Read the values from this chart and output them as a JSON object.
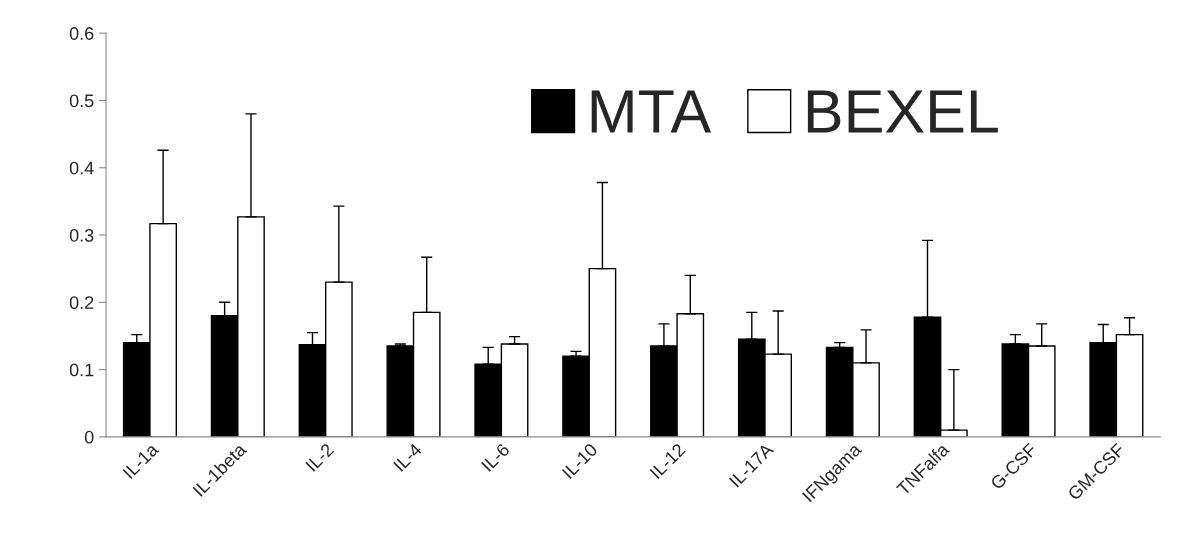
{
  "chart_data": {
    "type": "bar",
    "categories": [
      "IL-1a",
      "IL-1beta",
      "IL-2",
      "IL-4",
      "IL-6",
      "IL-10",
      "IL-12",
      "IL-17A",
      "IFNgama",
      "TNFalfa",
      "G-CSF",
      "GM-CSF"
    ],
    "series": [
      {
        "name": "MTA",
        "color": "#000000",
        "values": [
          0.14,
          0.18,
          0.137,
          0.135,
          0.108,
          0.12,
          0.135,
          0.145,
          0.133,
          0.178,
          0.138,
          0.14
        ],
        "errors": [
          [
            0.14,
            0.152
          ],
          [
            0.18,
            0.2
          ],
          [
            0.137,
            0.155
          ],
          [
            0.135,
            0.138
          ],
          [
            0.108,
            0.133
          ],
          [
            0.12,
            0.127
          ],
          [
            0.135,
            0.168
          ],
          [
            0.145,
            0.185
          ],
          [
            0.133,
            0.14
          ],
          [
            0.178,
            0.292
          ],
          [
            0.138,
            0.152
          ],
          [
            0.14,
            0.167
          ]
        ]
      },
      {
        "name": "BEXEL",
        "color": "#ffffff",
        "values": [
          0.317,
          0.327,
          0.23,
          0.185,
          0.138,
          0.25,
          0.183,
          0.123,
          0.11,
          0.01,
          0.135,
          0.152
        ],
        "errors": [
          [
            0.317,
            0.426
          ],
          [
            0.327,
            0.48
          ],
          [
            0.23,
            0.343
          ],
          [
            0.185,
            0.267
          ],
          [
            0.138,
            0.149
          ],
          [
            0.25,
            0.378
          ],
          [
            0.183,
            0.24
          ],
          [
            0.123,
            0.187
          ],
          [
            0.11,
            0.159
          ],
          [
            0.01,
            0.1
          ],
          [
            0.135,
            0.168
          ],
          [
            0.152,
            0.177
          ]
        ]
      }
    ],
    "ylim": [
      0,
      0.6
    ],
    "yticks": [
      0,
      0.1,
      0.2,
      0.3,
      0.4,
      0.5,
      0.6
    ],
    "grid": false,
    "legend": "top right"
  }
}
